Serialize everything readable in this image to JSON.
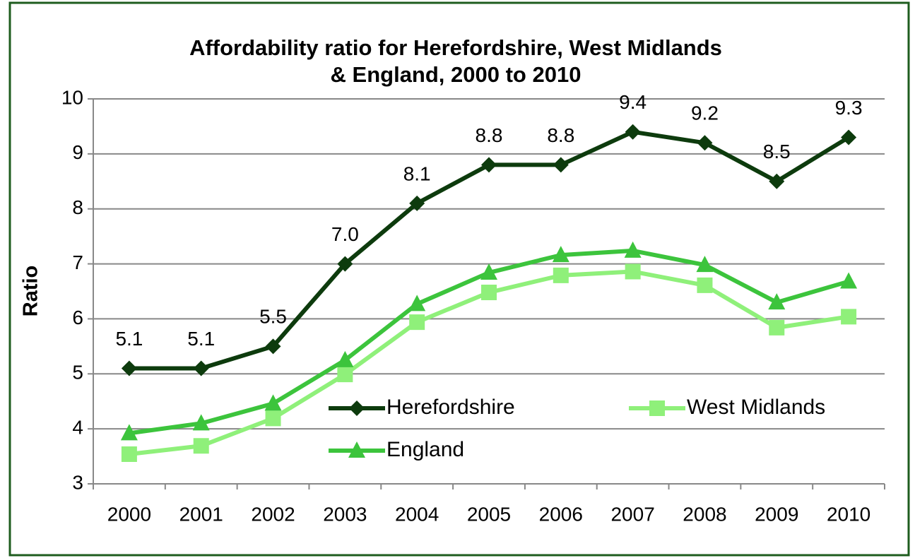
{
  "chart_data": {
    "type": "line",
    "title": [
      "Affordability ratio for Herefordshire, West Midlands",
      "& England, 2000 to 2010"
    ],
    "y_label": "Ratio",
    "categories": [
      "2000",
      "2001",
      "2002",
      "2003",
      "2004",
      "2005",
      "2006",
      "2007",
      "2008",
      "2009",
      "2010"
    ],
    "series": [
      {
        "name": "Herefordshire",
        "color": "#0d3b0d",
        "marker": "diamond",
        "values": [
          5.1,
          5.1,
          5.5,
          7.0,
          8.1,
          8.8,
          8.8,
          9.4,
          9.2,
          8.5,
          9.3
        ],
        "value_labels": [
          "5.1",
          "5.1",
          "5.5",
          "7.0",
          "8.1",
          "8.8",
          "8.8",
          "9.4",
          "9.2",
          "8.5",
          "9.3"
        ]
      },
      {
        "name": "West Midlands",
        "color": "#8ff07a",
        "marker": "square",
        "values": [
          3.54,
          3.69,
          4.19,
          4.99,
          5.94,
          6.48,
          6.79,
          6.86,
          6.61,
          5.84,
          6.04
        ]
      },
      {
        "name": "England",
        "color": "#3cc43c",
        "marker": "triangle",
        "values": [
          3.92,
          4.1,
          4.46,
          5.25,
          6.27,
          6.84,
          7.16,
          7.24,
          6.98,
          6.3,
          6.68
        ]
      }
    ],
    "ylim": [
      3,
      10
    ],
    "yticks": [
      3,
      4,
      5,
      6,
      7,
      8,
      9,
      10
    ],
    "grid": true
  }
}
